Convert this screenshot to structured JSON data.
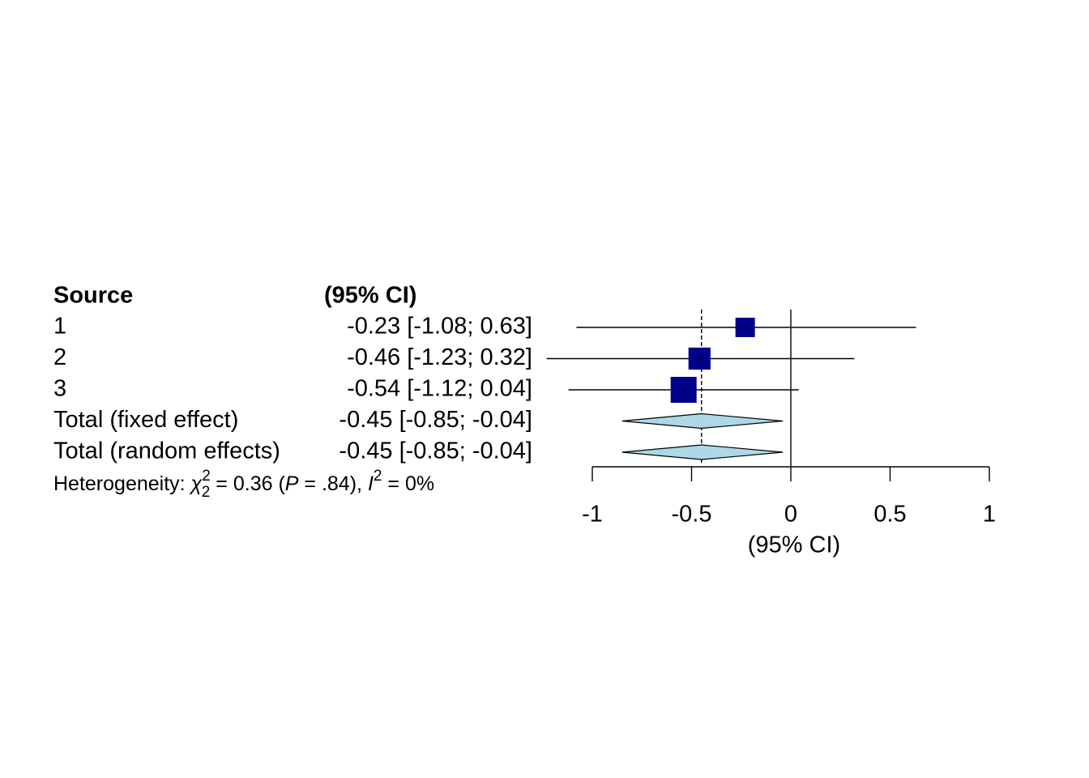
{
  "chart_data": {
    "type": "forest",
    "columns": {
      "source_header": "Source",
      "ci_header": "(95% CI)"
    },
    "rows": [
      {
        "label": "1",
        "estimate": -0.23,
        "lower": -1.08,
        "upper": 0.63,
        "ci_text": "-0.23 [-1.08;  0.63]",
        "kind": "study",
        "box_rel_size": 0.75
      },
      {
        "label": "2",
        "estimate": -0.46,
        "lower": -1.23,
        "upper": 0.32,
        "ci_text": "-0.46 [-1.23;  0.32]",
        "kind": "study",
        "box_rel_size": 0.85
      },
      {
        "label": "3",
        "estimate": -0.54,
        "lower": -1.12,
        "upper": 0.04,
        "ci_text": "-0.54 [-1.12;  0.04]",
        "kind": "study",
        "box_rel_size": 1.0
      },
      {
        "label": "Total (fixed effect)",
        "estimate": -0.45,
        "lower": -0.85,
        "upper": -0.04,
        "ci_text": "-0.45 [-0.85; -0.04]",
        "kind": "summary"
      },
      {
        "label": "Total (random effects)",
        "estimate": -0.45,
        "lower": -0.85,
        "upper": -0.04,
        "ci_text": "-0.45 [-0.85; -0.04]",
        "kind": "summary"
      }
    ],
    "heterogeneity": {
      "prefix": "Heterogeneity: ",
      "chi": "χ",
      "chi_sup": "2",
      "chi_sub": "2",
      "stat": " = 0.36 (",
      "p_letter": "P",
      "p_value": " = .84), ",
      "i_letter": "I",
      "i_sup": "2",
      "i_value": " = 0%"
    },
    "xaxis": {
      "label": "(95% CI)",
      "ticks": [
        -1,
        -0.5,
        0,
        0.5,
        1
      ],
      "tick_labels": [
        "-1",
        "-0.5",
        "0",
        "0.5",
        "1"
      ],
      "range": [
        -1,
        1
      ]
    },
    "reference_line": 0,
    "pooled_line": -0.45,
    "colors": {
      "square": "#00008B",
      "diamond": "#ADD8E6",
      "line": "#000000"
    }
  }
}
